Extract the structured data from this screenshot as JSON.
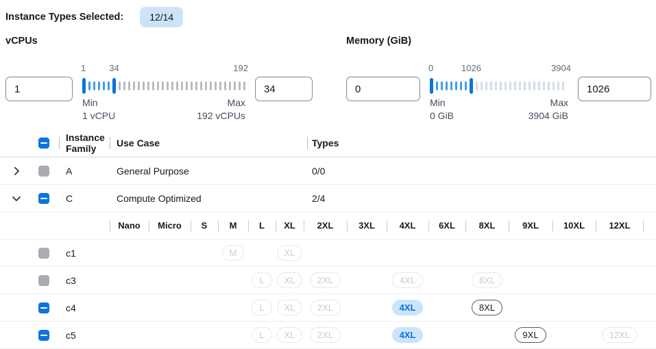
{
  "header": {
    "label": "Instance Types Selected:",
    "badge": "12/14"
  },
  "filters": {
    "vcpus": {
      "title": "vCPUs",
      "min_input": "1",
      "max_input": "34",
      "scale_labels": [
        "1",
        "34",
        "192"
      ],
      "min_label": "Min",
      "min_sub": "1 vCPU",
      "max_label": "Max",
      "max_sub": "192 vCPUs",
      "ticks": {
        "between": 5,
        "after": 27,
        "inactive_color": "#b9bcc1"
      }
    },
    "memory": {
      "title": "Memory (GiB)",
      "min_input": "0",
      "max_input": "1026",
      "scale_labels": [
        "0",
        "1026",
        "3904"
      ],
      "min_label": "Min",
      "min_sub": "0 GiB",
      "max_label": "Max",
      "max_sub": "3904 GiB",
      "ticks": {
        "between": 7,
        "after": 19,
        "inactive_color": "#d3dceb"
      }
    }
  },
  "table": {
    "headers": {
      "family": "Instance Family",
      "use_case": "Use Case",
      "types": "Types"
    },
    "header_checkbox": "indeterminate",
    "size_columns": [
      "Nano",
      "Micro",
      "S",
      "M",
      "L",
      "XL",
      "2XL",
      "3XL",
      "4XL",
      "6XL",
      "8XL",
      "9XL",
      "10XL",
      "12XL"
    ],
    "family_rows": [
      {
        "name": "A",
        "use_case": "General Purpose",
        "types": "0/0",
        "checkbox": "disabled",
        "expanded": false
      },
      {
        "name": "C",
        "use_case": "Compute Optimized",
        "types": "2/4",
        "checkbox": "indeterminate",
        "expanded": true
      }
    ],
    "instance_rows": [
      {
        "name": "c1",
        "checkbox": "disabled",
        "pills": {
          "M": "disabled",
          "XL": "disabled"
        }
      },
      {
        "name": "c3",
        "checkbox": "disabled",
        "pills": {
          "L": "disabled",
          "XL": "disabled",
          "2XL": "disabled",
          "4XL": "disabled",
          "8XL": "disabled"
        }
      },
      {
        "name": "c4",
        "checkbox": "indeterminate",
        "pills": {
          "L": "disabled",
          "XL": "disabled",
          "2XL": "disabled",
          "4XL": "selected",
          "8XL": "enabled"
        }
      },
      {
        "name": "c5",
        "checkbox": "indeterminate",
        "pills": {
          "L": "disabled",
          "XL": "disabled",
          "2XL": "disabled",
          "4XL": "selected",
          "9XL": "enabled",
          "12XL": "disabled"
        }
      }
    ]
  },
  "colors": {
    "accent_blue": "#0b74dd",
    "tick_active": "#3e9ef0",
    "vcpu_tick_inactive": "#b9bcc1",
    "memory_tick_inactive": "#d3dceb",
    "badge_bg": "#cde3f8",
    "selected_pill_bg": "#cbe4fb",
    "selected_pill_text": "#0770d8",
    "disabled_gray": "#a9acb2"
  }
}
